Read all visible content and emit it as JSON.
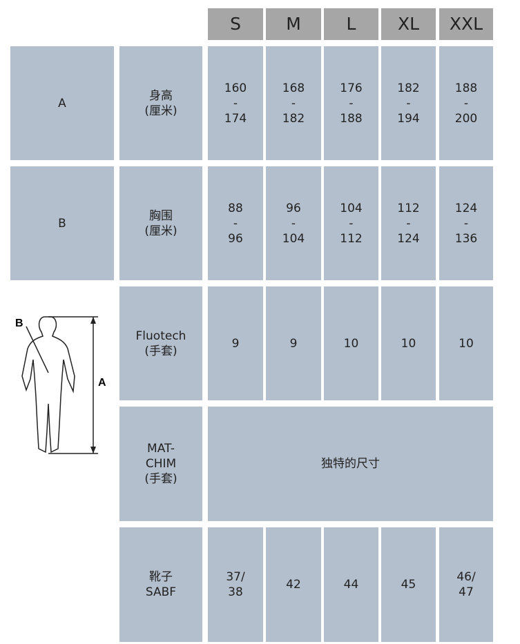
{
  "sizes": [
    "S",
    "M",
    "L",
    "XL",
    "XXL"
  ],
  "rows": [
    {
      "label": "A",
      "name": [
        "身高",
        "(厘米)"
      ],
      "cells": [
        [
          "160",
          "-",
          "174"
        ],
        [
          "168",
          "-",
          "182"
        ],
        [
          "176",
          "-",
          "188"
        ],
        [
          "182",
          "-",
          "194"
        ],
        [
          "188",
          "-",
          "200"
        ]
      ]
    },
    {
      "label": "B",
      "name": [
        "胸围",
        "(厘米)"
      ],
      "cells": [
        [
          "88",
          "-",
          "96"
        ],
        [
          "96",
          "-",
          "104"
        ],
        [
          "104",
          "-",
          "112"
        ],
        [
          "112",
          "-",
          "124"
        ],
        [
          "124",
          "-",
          "136"
        ]
      ]
    },
    {
      "name": [
        "Fluotech",
        "(手套)"
      ],
      "cells": [
        [
          "9"
        ],
        [
          "9"
        ],
        [
          "10"
        ],
        [
          "10"
        ],
        [
          "10"
        ]
      ]
    },
    {
      "name": [
        "MAT-",
        "CHIM",
        "(手套)"
      ],
      "merged": "独特的尺寸"
    },
    {
      "name": [
        "靴子",
        "SABF"
      ],
      "cells": [
        [
          "37/",
          "38"
        ],
        [
          "42"
        ],
        [
          "44"
        ],
        [
          "45"
        ],
        [
          "46/",
          "47"
        ]
      ]
    }
  ],
  "figure": {
    "labels": [
      "B",
      "A"
    ]
  }
}
